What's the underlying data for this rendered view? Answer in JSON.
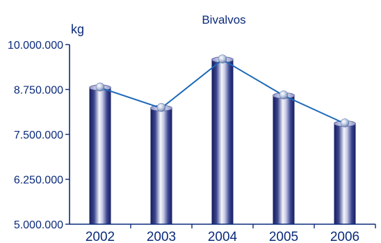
{
  "chart_data": {
    "type": "bar",
    "title": "Bivalvos",
    "ylabel": "kg",
    "xlabel": "",
    "categories": [
      "2002",
      "2003",
      "2004",
      "2005",
      "2006"
    ],
    "values": [
      8800000,
      8230000,
      9580000,
      8580000,
      7800000
    ],
    "ylim": [
      5000000,
      10000000
    ],
    "yticks": [
      {
        "value": 5000000,
        "label": "5.000.000"
      },
      {
        "value": 6250000,
        "label": "6.250.000"
      },
      {
        "value": 7500000,
        "label": "7.500.000"
      },
      {
        "value": 8750000,
        "label": "8.750.000"
      },
      {
        "value": 10000000,
        "label": "10.000.000"
      }
    ],
    "overlay_line": true,
    "grid": false,
    "colors": {
      "bar_dark": "#1c2470",
      "bar_light": "#ffffff",
      "line": "#1c68b8",
      "axis": "#0a2a7a",
      "text": "#0a2a7a"
    }
  }
}
